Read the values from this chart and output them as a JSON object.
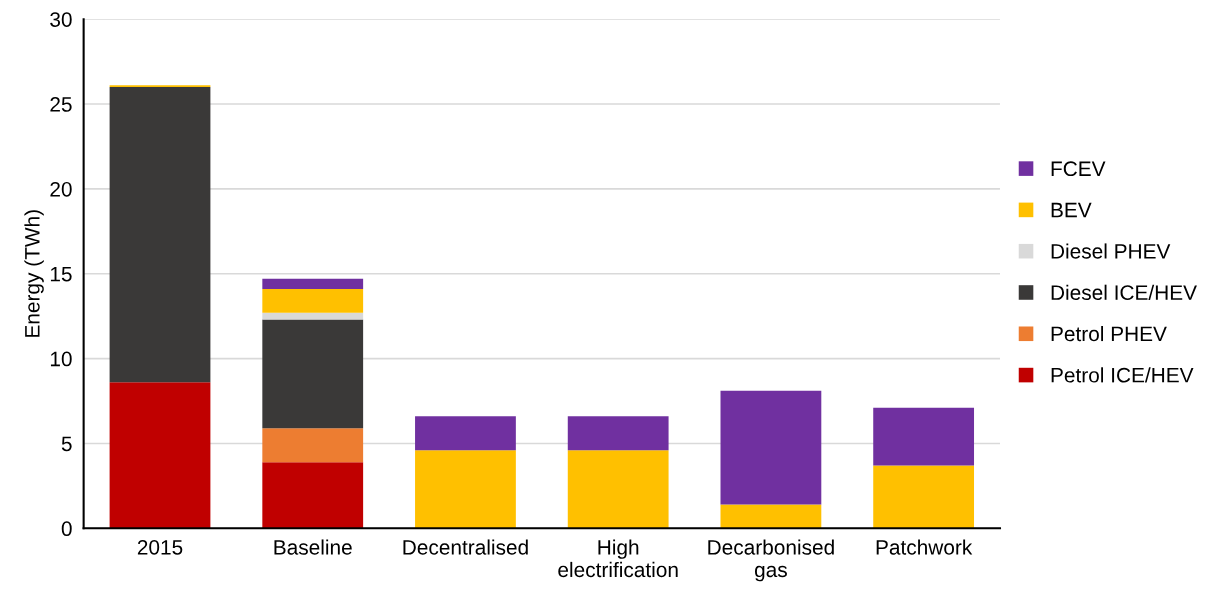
{
  "chart_data": {
    "type": "bar",
    "stacked": true,
    "ylabel": "Energy (TWh)",
    "categories": [
      "2015",
      "Baseline",
      "Decentralised",
      "High\nelectrification",
      "Decarbonised\ngas",
      "Patchwork"
    ],
    "series": [
      {
        "name": "Petrol ICE/HEV",
        "color": "#c00000",
        "values": [
          8.6,
          3.9,
          0,
          0,
          0,
          0
        ]
      },
      {
        "name": "Petrol PHEV",
        "color": "#ed7d31",
        "values": [
          0,
          2.0,
          0,
          0,
          0,
          0
        ]
      },
      {
        "name": "Diesel ICE/HEV",
        "color": "#3a3938",
        "values": [
          17.4,
          6.4,
          0,
          0,
          0,
          0
        ]
      },
      {
        "name": "Diesel PHEV",
        "color": "#d9d9d9",
        "values": [
          0,
          0.4,
          0,
          0,
          0,
          0
        ]
      },
      {
        "name": "BEV",
        "color": "#ffc000",
        "values": [
          0.1,
          1.4,
          4.6,
          4.6,
          1.4,
          3.7
        ]
      },
      {
        "name": "FCEV",
        "color": "#7030a0",
        "values": [
          0,
          0.6,
          2.0,
          2.0,
          6.7,
          3.4
        ]
      }
    ],
    "ylim": [
      0,
      30
    ],
    "yticks": [
      0,
      5,
      10,
      15,
      20,
      25,
      30
    ],
    "grid": "y",
    "legend": "right"
  }
}
